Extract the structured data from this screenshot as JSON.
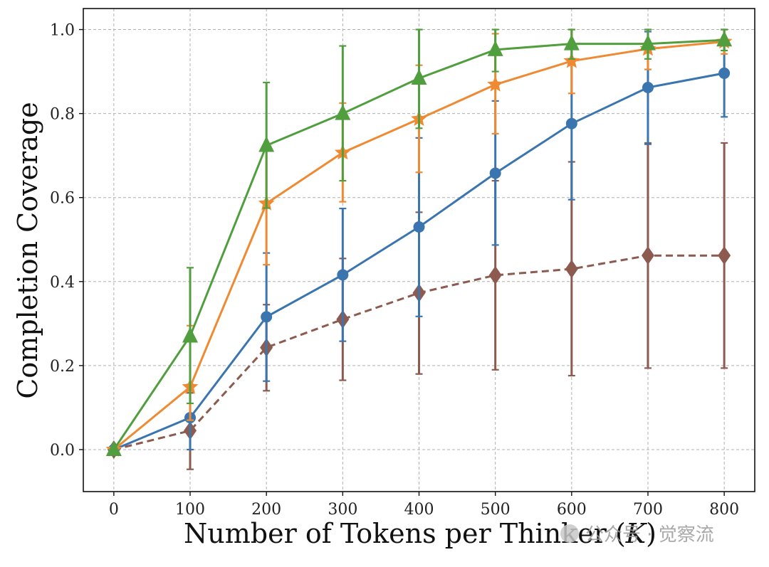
{
  "chart_data": {
    "type": "line",
    "title": "",
    "xlabel_prefix": "Number of Tokens per Thinker (",
    "xlabel_var": "K",
    "xlabel_suffix": ")",
    "ylabel": "Completion Coverage",
    "xlim": [
      -40,
      840
    ],
    "ylim": [
      -0.1,
      1.05
    ],
    "grid": true,
    "xticks": [
      0,
      100,
      200,
      300,
      400,
      500,
      600,
      700,
      800
    ],
    "xtick_labels": [
      "0",
      "100",
      "200",
      "300",
      "400",
      "500",
      "600",
      "700",
      "800"
    ],
    "yticks": [
      0.0,
      0.2,
      0.4,
      0.6,
      0.8,
      1.0
    ],
    "ytick_labels": [
      "0.0",
      "0.2",
      "0.4",
      "0.6",
      "0.8",
      "1.0"
    ],
    "x": [
      0,
      100,
      200,
      300,
      400,
      500,
      600,
      700,
      800
    ],
    "series": [
      {
        "name": "brown-dashed-diamond",
        "color": "#8c5a4e",
        "marker": "diamond",
        "dashed": true,
        "values": [
          0.0,
          0.045,
          0.243,
          0.31,
          0.373,
          0.415,
          0.43,
          0.462,
          0.462
        ],
        "err_low": [
          0.0,
          -0.047,
          0.14,
          0.165,
          0.18,
          0.19,
          0.176,
          0.194,
          0.194
        ],
        "err_high": [
          0.0,
          0.135,
          0.345,
          0.455,
          0.565,
          0.64,
          0.685,
          0.73,
          0.73
        ]
      },
      {
        "name": "blue-circle",
        "color": "#3b75af",
        "marker": "circle",
        "dashed": false,
        "values": [
          0.0,
          0.076,
          0.316,
          0.416,
          0.53,
          0.658,
          0.776,
          0.862,
          0.896
        ],
        "err_low": [
          0.0,
          0.0,
          0.163,
          0.258,
          0.317,
          0.487,
          0.595,
          0.727,
          0.792
        ],
        "err_high": [
          0.0,
          0.155,
          0.468,
          0.574,
          0.742,
          0.83,
          0.958,
          0.995,
          1.0
        ]
      },
      {
        "name": "orange-star",
        "color": "#ef8a32",
        "marker": "star",
        "dashed": false,
        "values": [
          0.0,
          0.149,
          0.586,
          0.707,
          0.787,
          0.869,
          0.925,
          0.954,
          0.971
        ],
        "err_low": [
          0.0,
          0.07,
          0.44,
          0.59,
          0.66,
          0.752,
          0.848,
          0.905,
          0.942
        ],
        "err_high": [
          0.0,
          0.295,
          0.72,
          0.825,
          0.915,
          0.99,
          1.0,
          1.0,
          1.0
        ]
      },
      {
        "name": "green-triangle",
        "color": "#519e3e",
        "marker": "triangle",
        "dashed": false,
        "values": [
          0.0,
          0.27,
          0.724,
          0.8,
          0.884,
          0.952,
          0.966,
          0.966,
          0.975
        ],
        "err_low": [
          0.0,
          0.11,
          0.575,
          0.64,
          0.765,
          0.9,
          0.93,
          0.93,
          0.95
        ],
        "err_high": [
          0.0,
          0.433,
          0.874,
          0.961,
          1.0,
          1.0,
          1.0,
          1.0,
          1.0
        ]
      }
    ]
  },
  "watermark": {
    "text": "公众号 · 觉察流"
  }
}
